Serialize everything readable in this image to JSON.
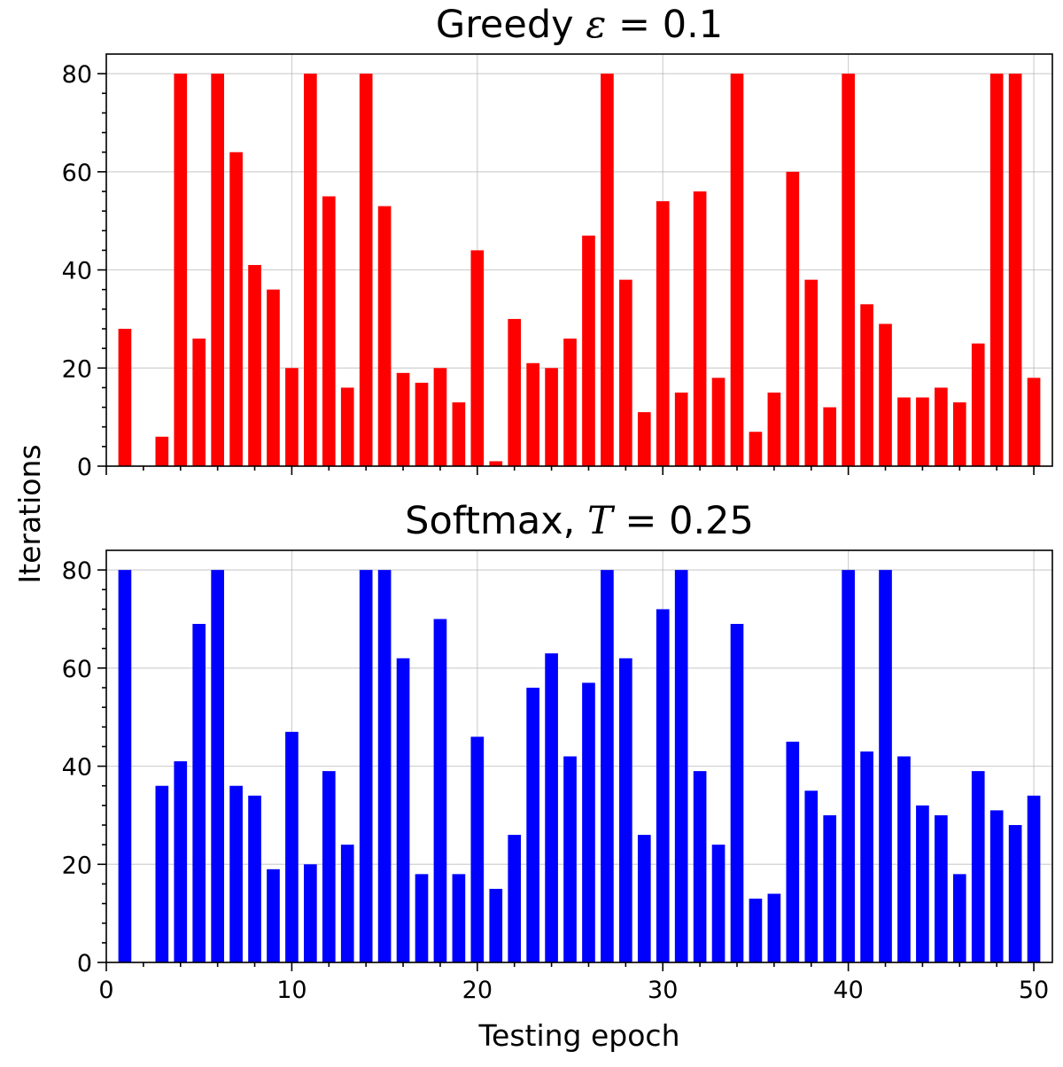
{
  "ylabel": "Iterations",
  "xlabel": "Testing epoch",
  "chart_data": [
    {
      "type": "bar",
      "title": "Greedy ε = 0.1",
      "title_parts": {
        "prefix": "Greedy ",
        "symbol": "ε",
        "suffix": " = 0.1"
      },
      "xlabel": "",
      "ylabel": "Iterations",
      "color": "#ff0000",
      "x": [
        1,
        2,
        3,
        4,
        5,
        6,
        7,
        8,
        9,
        10,
        11,
        12,
        13,
        14,
        15,
        16,
        17,
        18,
        19,
        20,
        21,
        22,
        23,
        24,
        25,
        26,
        27,
        28,
        29,
        30,
        31,
        32,
        33,
        34,
        35,
        36,
        37,
        38,
        39,
        40,
        41,
        42,
        43,
        44,
        45,
        46,
        47,
        48,
        49,
        50
      ],
      "values": [
        28,
        0,
        6,
        80,
        26,
        80,
        64,
        41,
        36,
        20,
        80,
        55,
        16,
        80,
        53,
        19,
        17,
        20,
        13,
        44,
        1,
        30,
        21,
        20,
        26,
        47,
        80,
        38,
        11,
        54,
        15,
        56,
        18,
        80,
        7,
        15,
        60,
        38,
        12,
        80,
        33,
        29,
        14,
        14,
        16,
        13,
        25,
        80,
        80,
        18
      ],
      "xlim": [
        0,
        51
      ],
      "ylim": [
        0,
        84
      ],
      "xticks": [
        0,
        10,
        20,
        30,
        40,
        50
      ],
      "xtick_labels_visible": false,
      "yticks": [
        0,
        20,
        40,
        60,
        80
      ],
      "ytick_labels": [
        "0",
        "20",
        "40",
        "60",
        "80"
      ],
      "grid": true
    },
    {
      "type": "bar",
      "title": "Softmax, T = 0.25",
      "title_parts": {
        "prefix": "Softmax, ",
        "symbol": "T",
        "suffix": " = 0.25"
      },
      "xlabel": "Testing epoch",
      "ylabel": "Iterations",
      "color": "#0000ff",
      "x": [
        1,
        2,
        3,
        4,
        5,
        6,
        7,
        8,
        9,
        10,
        11,
        12,
        13,
        14,
        15,
        16,
        17,
        18,
        19,
        20,
        21,
        22,
        23,
        24,
        25,
        26,
        27,
        28,
        29,
        30,
        31,
        32,
        33,
        34,
        35,
        36,
        37,
        38,
        39,
        40,
        41,
        42,
        43,
        44,
        45,
        46,
        47,
        48,
        49,
        50
      ],
      "values": [
        80,
        0,
        36,
        41,
        69,
        80,
        36,
        34,
        19,
        47,
        20,
        39,
        24,
        80,
        80,
        62,
        18,
        70,
        18,
        46,
        15,
        26,
        56,
        63,
        42,
        57,
        80,
        62,
        26,
        72,
        80,
        39,
        24,
        69,
        13,
        14,
        45,
        35,
        30,
        80,
        43,
        80,
        42,
        32,
        30,
        18,
        39,
        31,
        28,
        34
      ],
      "xlim": [
        0,
        51
      ],
      "ylim": [
        0,
        84
      ],
      "xticks": [
        0,
        10,
        20,
        30,
        40,
        50
      ],
      "xtick_labels": [
        "0",
        "10",
        "20",
        "30",
        "40",
        "50"
      ],
      "xtick_labels_visible": true,
      "yticks": [
        0,
        20,
        40,
        60,
        80
      ],
      "ytick_labels": [
        "0",
        "20",
        "40",
        "60",
        "80"
      ],
      "grid": true
    }
  ]
}
